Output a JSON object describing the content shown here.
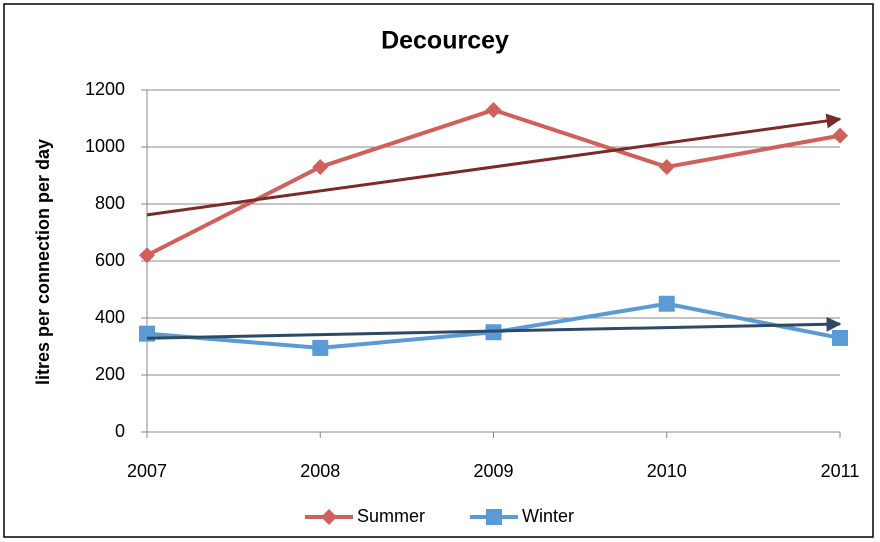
{
  "chart_data": {
    "type": "line",
    "title": "Decourcey",
    "y_label": "litres per connection per day",
    "categories": [
      "2007",
      "2008",
      "2009",
      "2010",
      "2011"
    ],
    "series": [
      {
        "name": "Summer",
        "color": "#d0605c",
        "marker": "diamond",
        "trendline": true,
        "trend_color": "#7a2a28",
        "values": [
          620,
          930,
          1130,
          930,
          1040
        ]
      },
      {
        "name": "Winter",
        "color": "#5b9bd5",
        "marker": "square",
        "trendline": true,
        "trend_color": "#2e4a66",
        "values": [
          345,
          295,
          350,
          450,
          330
        ]
      }
    ],
    "ylim": [
      0,
      1200
    ],
    "yticks": [
      0,
      200,
      400,
      600,
      800,
      1000,
      1200
    ],
    "grid": true,
    "legend": "bottom"
  }
}
